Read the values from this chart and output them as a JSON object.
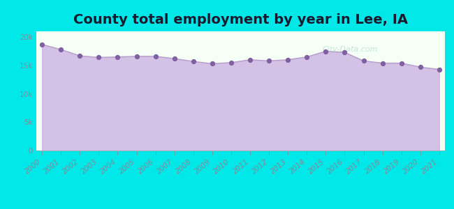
{
  "title": "County total employment by year in Lee, IA",
  "years": [
    2000,
    2001,
    2002,
    2003,
    2004,
    2005,
    2006,
    2007,
    2008,
    2009,
    2010,
    2011,
    2012,
    2013,
    2014,
    2015,
    2016,
    2017,
    2018,
    2019,
    2020,
    2021
  ],
  "values": [
    18700,
    17800,
    16700,
    16400,
    16500,
    16600,
    16600,
    16200,
    15700,
    15300,
    15500,
    16000,
    15800,
    16000,
    16500,
    17500,
    17300,
    15800,
    15400,
    15400,
    14700,
    14300
  ],
  "ylim": [
    0,
    21000
  ],
  "yticks": [
    0,
    5000,
    10000,
    15000,
    20000
  ],
  "ytick_labels": [
    "0",
    "5k",
    "10k",
    "15k",
    "20k"
  ],
  "line_color": "#b8a0cc",
  "fill_color": "#c8aee0",
  "fill_alpha": 0.75,
  "dot_color": "#8060a0",
  "dot_size": 18,
  "background_color": "#00e8e8",
  "plot_bg_color": "#f5fff5",
  "title_color": "#1a1a2e",
  "title_fontsize": 14,
  "tick_label_color": "#888899",
  "tick_fontsize": 7.5,
  "watermark": "City-Data.com",
  "watermark_color": "#a0cccc",
  "watermark_alpha": 0.55
}
